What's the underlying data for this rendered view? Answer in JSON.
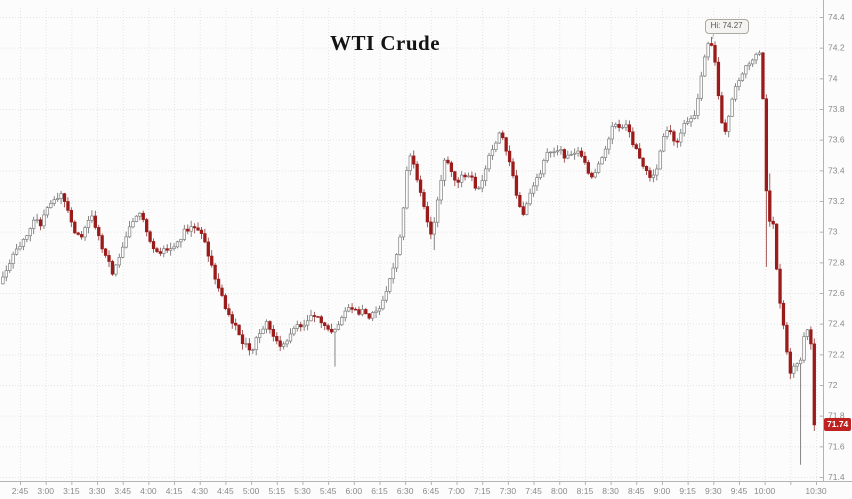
{
  "title": "WTI Crude",
  "annotations": {
    "hi": "Hi: 74.27",
    "last": "71.74"
  },
  "colors": {
    "background": "#fcfcfc",
    "down_body": "#9b1b1b",
    "down_wick": "#9c4a4a",
    "up_body_fill": "#fdfdfd",
    "up_body_stroke": "#7f7f7f",
    "up_wick": "#787878",
    "grid": "#e4e4e4",
    "axis_line": "#b3b3b3",
    "axis_text": "#8a8a8a",
    "hi_box_bg": "#f4f3f0",
    "hi_box_border": "#aaaaa2",
    "hi_box_text": "#555555",
    "last_tag_bg": "#bf2020",
    "last_tag_text": "#ffffff",
    "title_text": "#141414"
  },
  "chart_data": {
    "type": "candlestick",
    "title": "WTI Crude",
    "bar_minutes": 2,
    "time_axis_start_label": "2:45",
    "time_axis_end_label": "10:30",
    "x_ticks": [
      {
        "min": 0,
        "label": "2:45"
      },
      {
        "min": 15,
        "label": "3:00"
      },
      {
        "min": 30,
        "label": "3:15"
      },
      {
        "min": 45,
        "label": "3:30"
      },
      {
        "min": 60,
        "label": "3:45"
      },
      {
        "min": 75,
        "label": "4:00"
      },
      {
        "min": 90,
        "label": "4:15"
      },
      {
        "min": 105,
        "label": "4:30"
      },
      {
        "min": 120,
        "label": "4:45"
      },
      {
        "min": 135,
        "label": "5:00"
      },
      {
        "min": 150,
        "label": "5:15"
      },
      {
        "min": 165,
        "label": "5:30"
      },
      {
        "min": 180,
        "label": "5:45"
      },
      {
        "min": 195,
        "label": "6:00"
      },
      {
        "min": 210,
        "label": "6:15"
      },
      {
        "min": 225,
        "label": "6:30"
      },
      {
        "min": 240,
        "label": "6:45"
      },
      {
        "min": 255,
        "label": "7:00"
      },
      {
        "min": 270,
        "label": "7:15"
      },
      {
        "min": 285,
        "label": "7:30"
      },
      {
        "min": 300,
        "label": "7:45"
      },
      {
        "min": 315,
        "label": "8:00"
      },
      {
        "min": 330,
        "label": "8:15"
      },
      {
        "min": 345,
        "label": "8:30"
      },
      {
        "min": 360,
        "label": "8:45"
      },
      {
        "min": 375,
        "label": "9:00"
      },
      {
        "min": 390,
        "label": "9:15"
      },
      {
        "min": 405,
        "label": "9:30"
      },
      {
        "min": 420,
        "label": "9:45"
      },
      {
        "min": 435,
        "label": "10:00"
      },
      {
        "min": 465,
        "label": "10:30"
      }
    ],
    "x_grid_step_min": 15,
    "x_grid_max_min": 465,
    "y_ticks": [
      {
        "v": 74.4,
        "label": "74.4"
      },
      {
        "v": 74.2,
        "label": "74.2"
      },
      {
        "v": 74.0,
        "label": "74"
      },
      {
        "v": 73.8,
        "label": "73.8"
      },
      {
        "v": 73.6,
        "label": "73.6"
      },
      {
        "v": 73.4,
        "label": "73.4"
      },
      {
        "v": 73.2,
        "label": "73.2"
      },
      {
        "v": 73.0,
        "label": "73"
      },
      {
        "v": 72.8,
        "label": "72.8"
      },
      {
        "v": 72.6,
        "label": "72.6"
      },
      {
        "v": 72.4,
        "label": "72.4"
      },
      {
        "v": 72.2,
        "label": "72.2"
      },
      {
        "v": 72.0,
        "label": "72"
      },
      {
        "v": 71.8,
        "label": "71.8"
      },
      {
        "v": 71.6,
        "label": "71.6"
      },
      {
        "v": 71.4,
        "label": "71.4"
      }
    ],
    "ylim": [
      71.35,
      74.45
    ],
    "grid": true,
    "hi_point": {
      "min": 404,
      "price": 74.27
    },
    "last_point": {
      "min": 464,
      "price": 71.74
    },
    "waypoints": [
      [
        -10,
        72.66
      ],
      [
        -7,
        72.74
      ],
      [
        -4,
        72.8
      ],
      [
        -1,
        72.86
      ],
      [
        2,
        72.9
      ],
      [
        5,
        72.95
      ],
      [
        8,
        73.02
      ],
      [
        11,
        73.08
      ],
      [
        14,
        73.05
      ],
      [
        17,
        73.12
      ],
      [
        20,
        73.18
      ],
      [
        23,
        73.22
      ],
      [
        26,
        73.24
      ],
      [
        29,
        73.18
      ],
      [
        32,
        73.05
      ],
      [
        35,
        72.98
      ],
      [
        38,
        72.95
      ],
      [
        41,
        73.05
      ],
      [
        44,
        73.1
      ],
      [
        47,
        73.0
      ],
      [
        50,
        72.9
      ],
      [
        53,
        72.82
      ],
      [
        56,
        72.74
      ],
      [
        59,
        72.78
      ],
      [
        62,
        72.9
      ],
      [
        65,
        73.0
      ],
      [
        68,
        73.08
      ],
      [
        71,
        73.12
      ],
      [
        74,
        73.08
      ],
      [
        77,
        72.98
      ],
      [
        80,
        72.9
      ],
      [
        83,
        72.85
      ],
      [
        86,
        72.9
      ],
      [
        89,
        72.86
      ],
      [
        92,
        72.9
      ],
      [
        95,
        72.95
      ],
      [
        98,
        73.0
      ],
      [
        101,
        73.02
      ],
      [
        104,
        73.03
      ],
      [
        107,
        73.0
      ],
      [
        110,
        72.95
      ],
      [
        113,
        72.8
      ],
      [
        116,
        72.7
      ],
      [
        119,
        72.6
      ],
      [
        122,
        72.5
      ],
      [
        125,
        72.44
      ],
      [
        128,
        72.38
      ],
      [
        131,
        72.3
      ],
      [
        134,
        72.26
      ],
      [
        137,
        72.21
      ],
      [
        140,
        72.3
      ],
      [
        143,
        72.36
      ],
      [
        146,
        72.4
      ],
      [
        149,
        72.34
      ],
      [
        152,
        72.28
      ],
      [
        155,
        72.26
      ],
      [
        158,
        72.3
      ],
      [
        161,
        72.36
      ],
      [
        164,
        72.4
      ],
      [
        167,
        72.37
      ],
      [
        170,
        72.42
      ],
      [
        173,
        72.46
      ],
      [
        176,
        72.44
      ],
      [
        179,
        72.4
      ],
      [
        182,
        72.36
      ],
      [
        185,
        72.32
      ],
      [
        188,
        72.4
      ],
      [
        191,
        72.48
      ],
      [
        194,
        72.52
      ],
      [
        197,
        72.5
      ],
      [
        200,
        72.47
      ],
      [
        203,
        72.48
      ],
      [
        206,
        72.45
      ],
      [
        209,
        72.46
      ],
      [
        212,
        72.5
      ],
      [
        215,
        72.58
      ],
      [
        218,
        72.68
      ],
      [
        221,
        72.8
      ],
      [
        224,
        72.95
      ],
      [
        227,
        73.25
      ],
      [
        229,
        73.52
      ],
      [
        231,
        73.48
      ],
      [
        233,
        73.38
      ],
      [
        235,
        73.3
      ],
      [
        237,
        73.22
      ],
      [
        239,
        73.12
      ],
      [
        241,
        73.02
      ],
      [
        243,
        72.98
      ],
      [
        245,
        73.12
      ],
      [
        247,
        73.28
      ],
      [
        249,
        73.42
      ],
      [
        251,
        73.48
      ],
      [
        253,
        73.44
      ],
      [
        255,
        73.36
      ],
      [
        257,
        73.3
      ],
      [
        259,
        73.34
      ],
      [
        261,
        73.38
      ],
      [
        263,
        73.36
      ],
      [
        265,
        73.4
      ],
      [
        267,
        73.3
      ],
      [
        269,
        73.26
      ],
      [
        271,
        73.28
      ],
      [
        273,
        73.38
      ],
      [
        275,
        73.46
      ],
      [
        277,
        73.5
      ],
      [
        279,
        73.56
      ],
      [
        281,
        73.62
      ],
      [
        283,
        73.66
      ],
      [
        285,
        73.58
      ],
      [
        287,
        73.5
      ],
      [
        289,
        73.4
      ],
      [
        291,
        73.3
      ],
      [
        293,
        73.2
      ],
      [
        295,
        73.12
      ],
      [
        297,
        73.12
      ],
      [
        299,
        73.22
      ],
      [
        301,
        73.28
      ],
      [
        303,
        73.32
      ],
      [
        305,
        73.36
      ],
      [
        307,
        73.42
      ],
      [
        309,
        73.48
      ],
      [
        311,
        73.52
      ],
      [
        313,
        73.5
      ],
      [
        315,
        73.53
      ],
      [
        317,
        73.56
      ],
      [
        319,
        73.52
      ],
      [
        321,
        73.47
      ],
      [
        323,
        73.5
      ],
      [
        325,
        73.54
      ],
      [
        327,
        73.5
      ],
      [
        329,
        73.52
      ],
      [
        331,
        73.47
      ],
      [
        333,
        73.42
      ],
      [
        335,
        73.37
      ],
      [
        337,
        73.36
      ],
      [
        339,
        73.4
      ],
      [
        341,
        73.46
      ],
      [
        343,
        73.52
      ],
      [
        345,
        73.58
      ],
      [
        347,
        73.64
      ],
      [
        349,
        73.7
      ],
      [
        351,
        73.72
      ],
      [
        353,
        73.66
      ],
      [
        355,
        73.69
      ],
      [
        357,
        73.68
      ],
      [
        359,
        73.6
      ],
      [
        361,
        73.55
      ],
      [
        363,
        73.5
      ],
      [
        365,
        73.46
      ],
      [
        367,
        73.42
      ],
      [
        369,
        73.38
      ],
      [
        371,
        73.35
      ],
      [
        373,
        73.36
      ],
      [
        375,
        73.45
      ],
      [
        377,
        73.58
      ],
      [
        379,
        73.66
      ],
      [
        381,
        73.68
      ],
      [
        383,
        73.63
      ],
      [
        385,
        73.58
      ],
      [
        387,
        73.62
      ],
      [
        389,
        73.68
      ],
      [
        391,
        73.7
      ],
      [
        393,
        73.73
      ],
      [
        395,
        73.75
      ],
      [
        397,
        73.8
      ],
      [
        399,
        73.92
      ],
      [
        401,
        74.08
      ],
      [
        403,
        74.2
      ],
      [
        405,
        74.26
      ],
      [
        407,
        74.2
      ],
      [
        409,
        74.0
      ],
      [
        411,
        73.78
      ],
      [
        413,
        73.64
      ],
      [
        415,
        73.68
      ],
      [
        417,
        73.8
      ],
      [
        419,
        73.9
      ],
      [
        421,
        73.96
      ],
      [
        423,
        74.02
      ],
      [
        425,
        74.06
      ],
      [
        427,
        74.1
      ],
      [
        429,
        74.08
      ],
      [
        431,
        74.14
      ],
      [
        433,
        74.2
      ],
      [
        435,
        74.15
      ],
      [
        437,
        73.55
      ],
      [
        439,
        72.98
      ],
      [
        441,
        73.18
      ],
      [
        443,
        72.9
      ],
      [
        445,
        72.6
      ],
      [
        447,
        72.5
      ],
      [
        449,
        72.3
      ],
      [
        451,
        72.1
      ],
      [
        453,
        72.05
      ],
      [
        455,
        72.22
      ],
      [
        457,
        72.08
      ],
      [
        459,
        72.22
      ],
      [
        461,
        72.4
      ],
      [
        463,
        72.3
      ],
      [
        464,
        72.27
      ],
      [
        466,
        71.74
      ]
    ],
    "wick_overrides": [
      {
        "min": 184,
        "low": 72.12
      },
      {
        "min": 242,
        "low": 72.88
      },
      {
        "min": 404,
        "high": 74.27
      },
      {
        "min": 436,
        "low": 72.77
      },
      {
        "min": 438,
        "high": 73.38
      },
      {
        "min": 456,
        "low": 71.48
      },
      {
        "min": 464,
        "low": 71.7
      }
    ]
  }
}
